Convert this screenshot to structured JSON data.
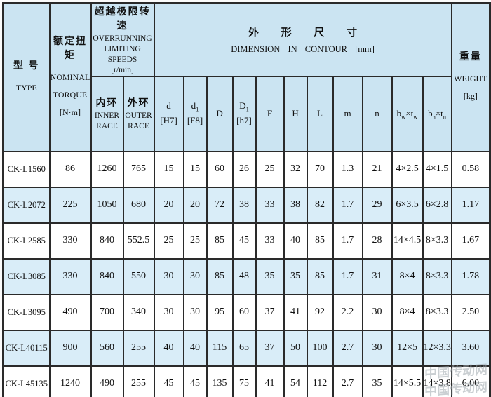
{
  "colors": {
    "header-bg": "#cbe4f2",
    "row-alt-bg": "#d9edf8",
    "border": "#2a2a2a",
    "text": "#101010",
    "watermark": "#9fa8ae"
  },
  "table": {
    "header": {
      "type": {
        "zh": "型 号",
        "en": "TYPE"
      },
      "torque": {
        "zh": "额定扭矩",
        "en": "NOMINAL\nTORQUE\n[N·m]"
      },
      "overrunning": {
        "zh": "超越极限转速",
        "en": "OVERRUNNING\nLIMITING SPEEDS\n[r/min]"
      },
      "inner_race": {
        "zh": "内环",
        "en": "INNER\nRACE"
      },
      "outer_race": {
        "zh": "外环",
        "en": "OUTER\nRACE"
      },
      "dimension": {
        "zh": "外 形 尺 寸",
        "en": "DIMENSION IN CONTOUR [mm]"
      },
      "dims": [
        "d\n[H7]",
        "d~1~\n[F8]",
        "D",
        "D~1~\n[h7]",
        "F",
        "H",
        "L",
        "m",
        "n",
        "b~w~×t~w~",
        "b~n~×t~n~"
      ],
      "weight": {
        "zh": "重量",
        "en": "WEIGHT\n[kg]"
      }
    },
    "rows": [
      [
        "CK-L1560",
        "86",
        "1260",
        "765",
        "15",
        "15",
        "60",
        "26",
        "25",
        "32",
        "70",
        "1.3",
        "21",
        "4×2.5",
        "4×1.5",
        "0.58"
      ],
      [
        "CK-L2072",
        "225",
        "1050",
        "680",
        "20",
        "20",
        "72",
        "38",
        "33",
        "38",
        "82",
        "1.7",
        "29",
        "6×3.5",
        "6×2.8",
        "1.17"
      ],
      [
        "CK-L2585",
        "330",
        "840",
        "552.5",
        "25",
        "25",
        "85",
        "45",
        "33",
        "40",
        "85",
        "1.7",
        "28",
        "14×4.5",
        "8×3.3",
        "1.67"
      ],
      [
        "CK-L3085",
        "330",
        "840",
        "550",
        "30",
        "30",
        "85",
        "48",
        "35",
        "35",
        "85",
        "1.7",
        "31",
        "8×4",
        "8×3.3",
        "1.78"
      ],
      [
        "CK-L3095",
        "490",
        "700",
        "340",
        "30",
        "30",
        "95",
        "60",
        "37",
        "41",
        "92",
        "2.2",
        "30",
        "8×4",
        "8×3.3",
        "2.50"
      ],
      [
        "CK-L40115",
        "900",
        "560",
        "255",
        "40",
        "40",
        "115",
        "65",
        "37",
        "50",
        "100",
        "2.7",
        "30",
        "12×5",
        "12×3.3",
        "3.60"
      ],
      [
        "CK-L45135",
        "1240",
        "490",
        "255",
        "45",
        "45",
        "135",
        "75",
        "41",
        "54",
        "112",
        "2.7",
        "35",
        "14×5.5",
        "14×3.8",
        "6.00"
      ]
    ]
  },
  "watermark": "中国传动网\n中国传动网"
}
